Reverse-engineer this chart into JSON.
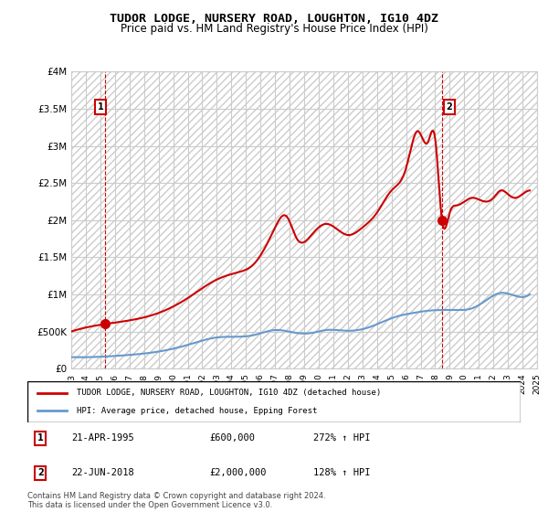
{
  "title": "TUDOR LODGE, NURSERY ROAD, LOUGHTON, IG10 4DZ",
  "subtitle": "Price paid vs. HM Land Registry's House Price Index (HPI)",
  "legend_line1": "TUDOR LODGE, NURSERY ROAD, LOUGHTON, IG10 4DZ (detached house)",
  "legend_line2": "HPI: Average price, detached house, Epping Forest",
  "footnote": "Contains HM Land Registry data © Crown copyright and database right 2024.\nThis data is licensed under the Open Government Licence v3.0.",
  "annotation1_label": "1",
  "annotation1_date": "21-APR-1995",
  "annotation1_price": "£600,000",
  "annotation1_hpi": "272% ↑ HPI",
  "annotation2_label": "2",
  "annotation2_date": "22-JUN-2018",
  "annotation2_price": "£2,000,000",
  "annotation2_hpi": "128% ↑ HPI",
  "sale1_x": 1995.31,
  "sale1_y": 600000,
  "sale2_x": 2018.47,
  "sale2_y": 2000000,
  "hpi_color": "#6699cc",
  "price_color": "#cc0000",
  "sale_dot_color": "#cc0000",
  "ylim_min": 0,
  "ylim_max": 4000000,
  "xlim_min": 1993,
  "xlim_max": 2025,
  "yticks": [
    0,
    500000,
    1000000,
    1500000,
    2000000,
    2500000,
    3000000,
    3500000,
    4000000
  ],
  "ytick_labels": [
    "£0",
    "£500K",
    "£1M",
    "£1.5M",
    "£2M",
    "£2.5M",
    "£3M",
    "£3.5M",
    "£4M"
  ],
  "xticks": [
    1993,
    1994,
    1995,
    1996,
    1997,
    1998,
    1999,
    2000,
    2001,
    2002,
    2003,
    2004,
    2005,
    2006,
    2007,
    2008,
    2009,
    2010,
    2011,
    2012,
    2013,
    2014,
    2015,
    2016,
    2017,
    2018,
    2019,
    2020,
    2021,
    2022,
    2023,
    2024,
    2025
  ],
  "bg_hatch_color": "#dddddd",
  "grid_color": "#cccccc"
}
